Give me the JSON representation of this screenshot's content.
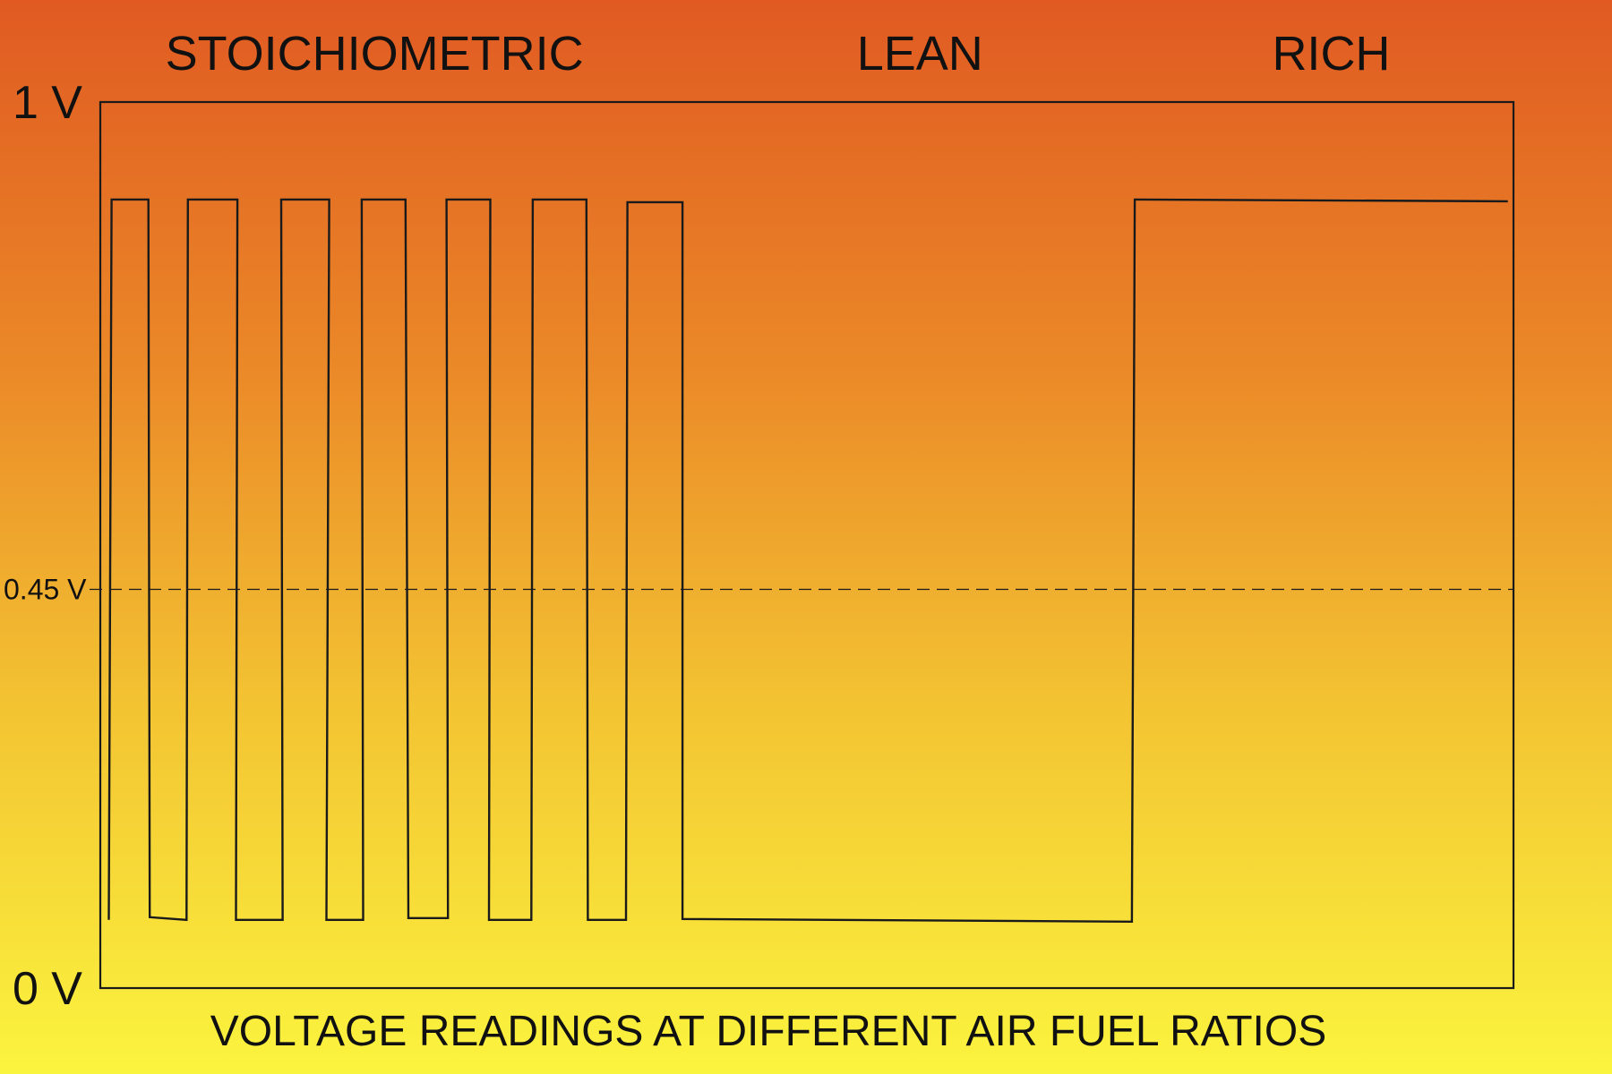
{
  "chart_data": {
    "type": "line",
    "title": "VOLTAGE READINGS AT DIFFERENT AIR FUEL RATIOS",
    "xlabel": "",
    "ylabel": "",
    "ylim": [
      0,
      1
    ],
    "xlim": [
      0,
      100
    ],
    "y_ticks": [
      {
        "value": 1,
        "label": "1 V"
      },
      {
        "value": 0,
        "label": "0 V"
      }
    ],
    "reference_line": {
      "value": 0.45,
      "label": "0.45 V",
      "style": "dashed"
    },
    "regions": [
      {
        "label": "STOICHIOMETRIC",
        "x_center": 19.4
      },
      {
        "label": "LEAN",
        "x_center": 58.0
      },
      {
        "label": "RICH",
        "x_center": 87.1
      }
    ],
    "grid": false,
    "series": [
      {
        "points": [
          [
            0.6,
            0.077
          ],
          [
            0.8,
            0.89
          ],
          [
            3.4,
            0.89
          ],
          [
            3.5,
            0.08
          ],
          [
            6.1,
            0.077
          ],
          [
            6.2,
            0.89
          ],
          [
            9.7,
            0.89
          ],
          [
            9.6,
            0.077
          ],
          [
            12.9,
            0.077
          ],
          [
            12.8,
            0.89
          ],
          [
            16.2,
            0.89
          ],
          [
            16.0,
            0.077
          ],
          [
            18.6,
            0.077
          ],
          [
            18.5,
            0.89
          ],
          [
            21.6,
            0.89
          ],
          [
            21.8,
            0.079
          ],
          [
            24.6,
            0.079
          ],
          [
            24.5,
            0.89
          ],
          [
            27.6,
            0.89
          ],
          [
            27.5,
            0.077
          ],
          [
            30.5,
            0.077
          ],
          [
            30.6,
            0.89
          ],
          [
            34.4,
            0.89
          ],
          [
            34.5,
            0.077
          ],
          [
            37.2,
            0.077
          ],
          [
            37.3,
            0.887
          ],
          [
            41.2,
            0.887
          ],
          [
            41.2,
            0.078
          ],
          [
            73.0,
            0.075
          ],
          [
            73.2,
            0.89
          ],
          [
            99.6,
            0.888
          ]
        ]
      }
    ],
    "colors": {
      "line": "#1a1a1a",
      "background_top": "#e05a22",
      "background_mid": "#eb8a28",
      "background_bottom": "#fbf43e"
    }
  }
}
